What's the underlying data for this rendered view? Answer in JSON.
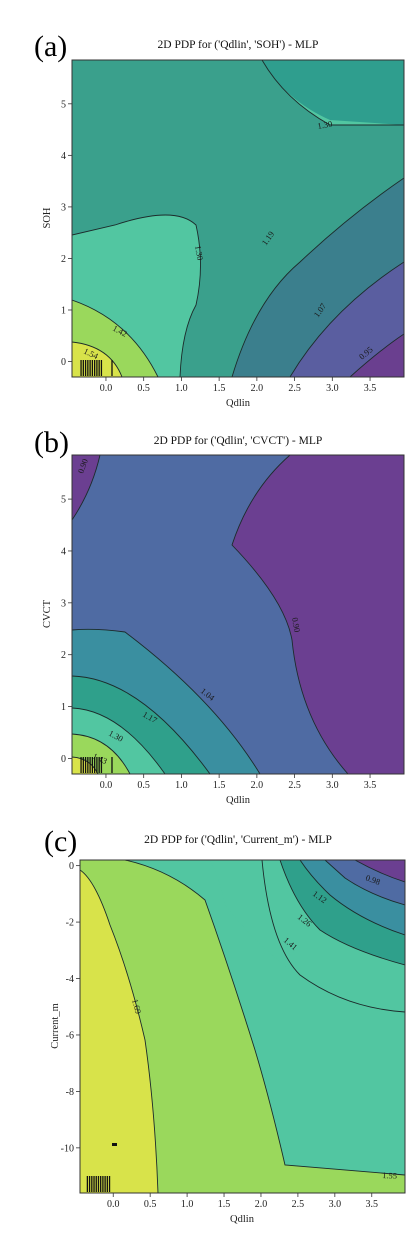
{
  "chart_data": [
    {
      "type": "contour",
      "panel_label": "(a)",
      "title": "2D PDP for ('Qdlin', 'SOH') - MLP",
      "xlabel": "Qdlin",
      "ylabel": "SOH",
      "xlim": [
        -0.45,
        3.95
      ],
      "ylim": [
        -0.3,
        5.85
      ],
      "xticks": [
        "0.0",
        "0.5",
        "1.0",
        "1.5",
        "2.0",
        "2.5",
        "3.0",
        "3.5"
      ],
      "yticks": [
        "0",
        "1",
        "2",
        "3",
        "4",
        "5"
      ],
      "contour_levels": [
        0.95,
        1.07,
        1.19,
        1.3,
        1.42,
        1.54
      ],
      "contour_labels": [
        "1.30",
        "1.30",
        "1.19",
        "1.07",
        "0.95",
        "1.42",
        "1.54"
      ],
      "rug_x": [
        -0.33,
        -0.3,
        -0.27,
        -0.24,
        -0.21,
        -0.18,
        -0.15,
        -0.12,
        -0.09,
        -0.06,
        0.08
      ],
      "colormap": "viridis"
    },
    {
      "type": "contour",
      "panel_label": "(b)",
      "title": "2D PDP for ('Qdlin', 'CVCT') - MLP",
      "xlabel": "Qdlin",
      "ylabel": "CVCT",
      "xlim": [
        -0.45,
        3.95
      ],
      "ylim": [
        -0.3,
        5.85
      ],
      "xticks": [
        "0.0",
        "0.5",
        "1.0",
        "1.5",
        "2.0",
        "2.5",
        "3.0",
        "3.5"
      ],
      "yticks": [
        "0",
        "1",
        "2",
        "3",
        "4",
        "5"
      ],
      "contour_levels": [
        0.9,
        1.04,
        1.17,
        1.3,
        1.43,
        1.56
      ],
      "contour_labels": [
        "0.90",
        "0.90",
        "1.04",
        "1.17",
        "1.30",
        "1.43"
      ],
      "rug_x": [
        -0.33,
        -0.3,
        -0.27,
        -0.24,
        -0.21,
        -0.18,
        -0.15,
        -0.12,
        -0.09,
        -0.06,
        0.08
      ],
      "colormap": "viridis"
    },
    {
      "type": "contour",
      "panel_label": "(c)",
      "title": "2D PDP for ('Qdlin', 'Current_m') - MLP",
      "xlabel": "Qdlin",
      "ylabel": "Current_m",
      "xlim": [
        -0.45,
        3.95
      ],
      "ylim": [
        -11.6,
        0.2
      ],
      "xticks": [
        "0.0",
        "0.5",
        "1.0",
        "1.5",
        "2.0",
        "2.5",
        "3.0",
        "3.5"
      ],
      "yticks": [
        "0",
        "-2",
        "-4",
        "-6",
        "-8",
        "-10"
      ],
      "contour_levels": [
        0.98,
        1.12,
        1.26,
        1.41,
        1.55,
        1.69
      ],
      "contour_labels": [
        "0.98",
        "1.12",
        "1.26",
        "1.41",
        "1.69",
        "1.55"
      ],
      "rug_x": [
        -0.35,
        -0.32,
        -0.29,
        -0.26,
        -0.23,
        -0.2,
        -0.17,
        -0.14,
        -0.11,
        -0.08,
        -0.05
      ],
      "colormap": "viridis"
    }
  ]
}
